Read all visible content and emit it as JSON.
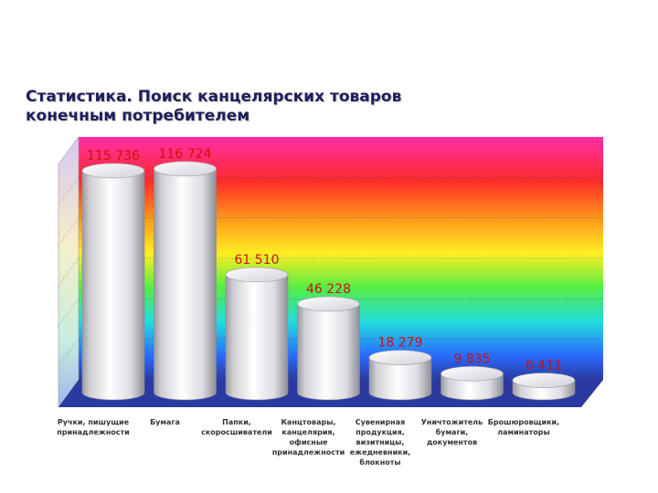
{
  "title_lines": [
    "Статистика. Поиск канцелярских товаров",
    "конечным потребителем"
  ],
  "chart_data": {
    "type": "bar",
    "title": "Статистика. Поиск канцелярских товаров конечным потребителем",
    "categories": [
      "Ручки, пишущие принадлежности",
      "Бумага",
      "Папки, скоросшиватели",
      "Канцтовары, канцелярия, офисные принадлежности",
      "Сувенирная продукция, визитницы, ежедневники, блокноты",
      "Уничтожитель бумаги, документов",
      "Брошюровщики, ламинаторы"
    ],
    "category_labels": [
      "Ручки, пишущие\nпринадлежности",
      "Бумага",
      "Папки,\nскоросшиватели",
      "Канцтовары,\nканцелярия,\nофисные\nпринадлежности",
      "Сувенирная\nпродукция,\nвизитницы,\nежедневники,\nблокноты",
      "Уничтожитель\nбумаги,\nдокументов",
      "Брошюровщики,\nламинаторы"
    ],
    "values": [
      115736,
      116724,
      61510,
      46228,
      18279,
      9835,
      6411
    ],
    "value_labels": [
      "115 736",
      "116 724",
      "61 510",
      "46 228",
      "18 279",
      "9 835",
      "6 411"
    ],
    "xlabel": "",
    "ylabel": "",
    "ylim": [
      0,
      120000
    ],
    "style": "3d-cylinders",
    "background": "rainbow-gradient",
    "bar_color": "#e6e6ea",
    "label_color": "#cc1111",
    "floor_color": "#2a3aa0"
  }
}
